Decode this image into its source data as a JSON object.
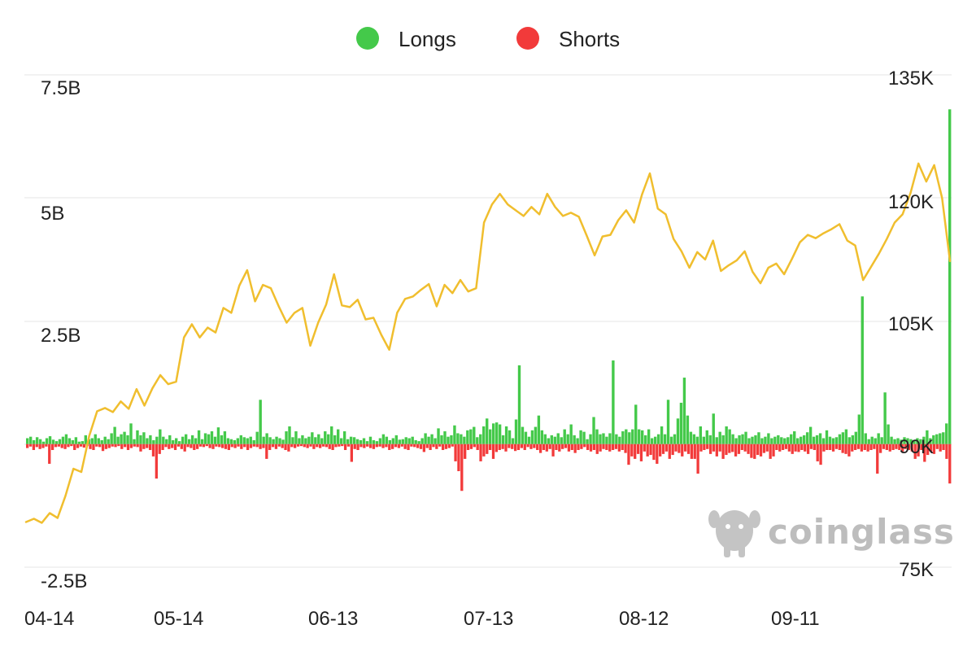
{
  "legend": [
    {
      "label": "Longs",
      "color": "#44c94a",
      "icon": "green-dot-icon"
    },
    {
      "label": "Shorts",
      "color": "#f23a3a",
      "icon": "red-dot-icon"
    }
  ],
  "watermark": {
    "text": "coinglass",
    "icon": "coinglass-logo-icon"
  },
  "colors": {
    "longs": "#44c94a",
    "shorts": "#f23a3a",
    "price": "#f0be2e",
    "grid": "#e6e6e6"
  },
  "chart_data": {
    "type": "bar",
    "x_range": [
      "2025-04-14",
      "2025-10-10"
    ],
    "x_tick_labels": [
      "04-14",
      "05-14",
      "06-13",
      "07-13",
      "08-12",
      "09-11"
    ],
    "y_left": {
      "ticks": [
        "7.5B",
        "5B",
        "2.5B",
        "-2.5B"
      ],
      "range": [
        -2.5,
        7.5
      ],
      "unit": "B"
    },
    "y_right": {
      "ticks": [
        "135K",
        "120K",
        "105K",
        "90K",
        "75K"
      ],
      "range": [
        75,
        135
      ],
      "unit": "K"
    },
    "grid": true,
    "legend_position": "top-center",
    "series": [
      {
        "name": "Longs",
        "type": "bar",
        "axis": "left",
        "values": [
          0.12,
          0.15,
          0.08,
          0.14,
          0.1,
          0.05,
          0.12,
          0.16,
          0.09,
          0.06,
          0.1,
          0.15,
          0.2,
          0.12,
          0.08,
          0.14,
          0.05,
          0.06,
          0.18,
          0.1,
          0.12,
          0.2,
          0.12,
          0.08,
          0.15,
          0.1,
          0.22,
          0.35,
          0.15,
          0.2,
          0.25,
          0.18,
          0.42,
          0.1,
          0.28,
          0.18,
          0.24,
          0.12,
          0.18,
          0.08,
          0.15,
          0.3,
          0.15,
          0.1,
          0.18,
          0.08,
          0.12,
          0.06,
          0.15,
          0.2,
          0.1,
          0.18,
          0.12,
          0.28,
          0.1,
          0.22,
          0.2,
          0.26,
          0.15,
          0.34,
          0.18,
          0.26,
          0.12,
          0.1,
          0.08,
          0.12,
          0.18,
          0.14,
          0.12,
          0.15,
          0.08,
          0.25,
          0.9,
          0.15,
          0.22,
          0.14,
          0.1,
          0.15,
          0.12,
          0.09,
          0.26,
          0.36,
          0.14,
          0.26,
          0.12,
          0.18,
          0.12,
          0.15,
          0.24,
          0.14,
          0.2,
          0.12,
          0.26,
          0.2,
          0.36,
          0.18,
          0.3,
          0.12,
          0.26,
          0.1,
          0.15,
          0.14,
          0.1,
          0.08,
          0.12,
          0.06,
          0.15,
          0.08,
          0.06,
          0.12,
          0.2,
          0.15,
          0.08,
          0.12,
          0.18,
          0.09,
          0.1,
          0.14,
          0.12,
          0.15,
          0.08,
          0.06,
          0.12,
          0.22,
          0.15,
          0.2,
          0.12,
          0.32,
          0.18,
          0.26,
          0.15,
          0.18,
          0.38,
          0.22,
          0.2,
          0.15,
          0.28,
          0.3,
          0.35,
          0.14,
          0.2,
          0.36,
          0.52,
          0.3,
          0.42,
          0.44,
          0.4,
          0.18,
          0.36,
          0.28,
          0.12,
          0.5,
          1.6,
          0.35,
          0.25,
          0.15,
          0.28,
          0.35,
          0.58,
          0.28,
          0.2,
          0.12,
          0.18,
          0.15,
          0.22,
          0.14,
          0.3,
          0.2,
          0.4,
          0.18,
          0.12,
          0.28,
          0.25,
          0.1,
          0.2,
          0.55,
          0.3,
          0.2,
          0.22,
          0.15,
          0.22,
          1.7,
          0.2,
          0.15,
          0.26,
          0.3,
          0.24,
          0.3,
          0.8,
          0.3,
          0.28,
          0.18,
          0.3,
          0.12,
          0.15,
          0.2,
          0.36,
          0.2,
          0.9,
          0.15,
          0.2,
          0.52,
          0.84,
          1.35,
          0.58,
          0.25,
          0.2,
          0.15,
          0.36,
          0.15,
          0.28,
          0.18,
          0.62,
          0.14,
          0.25,
          0.18,
          0.36,
          0.3,
          0.2,
          0.12,
          0.18,
          0.2,
          0.25,
          0.12,
          0.15,
          0.18,
          0.24,
          0.12,
          0.15,
          0.22,
          0.12,
          0.15,
          0.18,
          0.14,
          0.12,
          0.14,
          0.2,
          0.26,
          0.12,
          0.15,
          0.18,
          0.24,
          0.35,
          0.15,
          0.18,
          0.22,
          0.12,
          0.28,
          0.15,
          0.12,
          0.14,
          0.2,
          0.24,
          0.3,
          0.14,
          0.18,
          0.25,
          0.6,
          3.0,
          0.22,
          0.1,
          0.15,
          0.12,
          0.22,
          0.14,
          1.05,
          0.4,
          0.15,
          0.1,
          0.12,
          0.09,
          0.14,
          0.12,
          0.1,
          0.08,
          0.12,
          0.1,
          0.15,
          0.28,
          0.12,
          0.18,
          0.2,
          0.22,
          0.24,
          0.42,
          6.8
        ],
        "color": "#44c94a"
      },
      {
        "name": "Shorts",
        "type": "bar",
        "axis": "left",
        "values": [
          -0.08,
          -0.05,
          -0.12,
          -0.06,
          -0.1,
          -0.08,
          -0.05,
          -0.4,
          -0.12,
          -0.06,
          -0.05,
          -0.08,
          -0.1,
          -0.06,
          -0.04,
          -0.12,
          -0.08,
          -0.05,
          -0.07,
          -0.04,
          -0.1,
          -0.12,
          -0.05,
          -0.06,
          -0.14,
          -0.1,
          -0.08,
          -0.05,
          -0.06,
          -0.04,
          -0.1,
          -0.06,
          -0.12,
          -0.08,
          -0.05,
          -0.06,
          -0.15,
          -0.1,
          -0.08,
          -0.12,
          -0.25,
          -0.7,
          -0.2,
          -0.12,
          -0.06,
          -0.1,
          -0.08,
          -0.12,
          -0.05,
          -0.1,
          -0.15,
          -0.06,
          -0.08,
          -0.12,
          -0.1,
          -0.05,
          -0.06,
          -0.04,
          -0.08,
          -0.1,
          -0.05,
          -0.06,
          -0.08,
          -0.1,
          -0.12,
          -0.06,
          -0.08,
          -0.05,
          -0.1,
          -0.06,
          -0.12,
          -0.08,
          -0.05,
          -0.06,
          -0.1,
          -0.08,
          -0.3,
          -0.12,
          -0.06,
          -0.1,
          -0.05,
          -0.08,
          -0.12,
          -0.15,
          -0.06,
          -0.08,
          -0.05,
          -0.04,
          -0.06,
          -0.08,
          -0.05,
          -0.1,
          -0.06,
          -0.08,
          -0.05,
          -0.06,
          -0.1,
          -0.12,
          -0.06,
          -0.05,
          -0.04,
          -0.12,
          -0.05,
          -0.36,
          -0.1,
          -0.12,
          -0.06,
          -0.08,
          -0.05,
          -0.08,
          -0.1,
          -0.06,
          -0.05,
          -0.08,
          -0.06,
          -0.12,
          -0.1,
          -0.06,
          -0.08,
          -0.05,
          -0.1,
          -0.12,
          -0.05,
          -0.06,
          -0.08,
          -0.1,
          -0.16,
          -0.08,
          -0.12,
          -0.06,
          -0.1,
          -0.05,
          -0.12,
          -0.1,
          -0.08,
          -0.05,
          -0.35,
          -0.55,
          -0.95,
          -0.3,
          -0.12,
          -0.1,
          -0.06,
          -0.12,
          -0.35,
          -0.25,
          -0.2,
          -0.12,
          -0.3,
          -0.16,
          -0.12,
          -0.1,
          -0.15,
          -0.08,
          -0.1,
          -0.14,
          -0.12,
          -0.08,
          -0.12,
          -0.06,
          -0.1,
          -0.08,
          -0.12,
          -0.18,
          -0.12,
          -0.15,
          -0.1,
          -0.25,
          -0.12,
          -0.15,
          -0.1,
          -0.08,
          -0.15,
          -0.12,
          -0.18,
          -0.12,
          -0.1,
          -0.06,
          -0.12,
          -0.15,
          -0.12,
          -0.2,
          -0.15,
          -0.1,
          -0.12,
          -0.15,
          -0.12,
          -0.1,
          -0.15,
          -0.12,
          -0.18,
          -0.42,
          -0.25,
          -0.3,
          -0.2,
          -0.35,
          -0.15,
          -0.25,
          -0.22,
          -0.32,
          -0.4,
          -0.25,
          -0.2,
          -0.15,
          -0.3,
          -0.22,
          -0.15,
          -0.18,
          -0.25,
          -0.15,
          -0.2,
          -0.3,
          -0.3,
          -0.6,
          -0.15,
          -0.12,
          -0.1,
          -0.2,
          -0.15,
          -0.25,
          -0.15,
          -0.3,
          -0.22,
          -0.18,
          -0.16,
          -0.25,
          -0.2,
          -0.12,
          -0.15,
          -0.2,
          -0.28,
          -0.3,
          -0.22,
          -0.25,
          -0.18,
          -0.15,
          -0.3,
          -0.25,
          -0.12,
          -0.15,
          -0.12,
          -0.1,
          -0.15,
          -0.2,
          -0.15,
          -0.16,
          -0.12,
          -0.15,
          -0.2,
          -0.1,
          -0.12,
          -0.35,
          -0.42,
          -0.15,
          -0.12,
          -0.12,
          -0.15,
          -0.1,
          -0.12,
          -0.18,
          -0.2,
          -0.25,
          -0.15,
          -0.12,
          -0.1,
          -0.15,
          -0.12,
          -0.15,
          -0.12,
          -0.1,
          -0.6,
          -0.18,
          -0.1,
          -0.12,
          -0.15,
          -0.12,
          -0.1,
          -0.12,
          -0.15,
          -0.1,
          -0.12,
          -0.15,
          -0.3,
          -0.25,
          -0.12,
          -0.36,
          -0.22,
          -0.15,
          -0.2,
          -0.1,
          -0.15,
          -0.12,
          -0.3,
          -0.8
        ],
        "color": "#f23a3a"
      },
      {
        "name": "Price",
        "type": "line",
        "axis": "right",
        "points": [
          [
            0,
            80.5
          ],
          [
            3,
            80.9
          ],
          [
            6,
            80.4
          ],
          [
            9,
            81.6
          ],
          [
            12,
            81.0
          ],
          [
            15,
            83.7
          ],
          [
            18,
            87.0
          ],
          [
            21,
            86.6
          ],
          [
            24,
            91.0
          ],
          [
            27,
            94.0
          ],
          [
            30,
            94.4
          ],
          [
            33,
            93.9
          ],
          [
            36,
            95.2
          ],
          [
            39,
            94.3
          ],
          [
            42,
            96.7
          ],
          [
            45,
            94.7
          ],
          [
            48,
            96.8
          ],
          [
            51,
            98.4
          ],
          [
            54,
            97.3
          ],
          [
            57,
            97.6
          ],
          [
            60,
            103.0
          ],
          [
            63,
            104.6
          ],
          [
            66,
            103.0
          ],
          [
            69,
            104.2
          ],
          [
            72,
            103.6
          ],
          [
            75,
            106.6
          ],
          [
            78,
            106.0
          ],
          [
            81,
            109.3
          ],
          [
            84,
            111.2
          ],
          [
            87,
            107.4
          ],
          [
            90,
            109.4
          ],
          [
            93,
            109.0
          ],
          [
            96,
            106.8
          ],
          [
            99,
            104.8
          ],
          [
            102,
            106.0
          ],
          [
            105,
            106.6
          ],
          [
            108,
            102.0
          ],
          [
            111,
            104.8
          ],
          [
            114,
            107.0
          ],
          [
            117,
            110.7
          ],
          [
            120,
            106.9
          ],
          [
            123,
            106.7
          ],
          [
            126,
            107.6
          ],
          [
            129,
            105.2
          ],
          [
            132,
            105.4
          ],
          [
            135,
            103.3
          ],
          [
            138,
            101.5
          ],
          [
            141,
            106.0
          ],
          [
            144,
            107.7
          ],
          [
            147,
            108.0
          ],
          [
            150,
            108.8
          ],
          [
            153,
            109.5
          ],
          [
            156,
            106.8
          ],
          [
            159,
            109.4
          ],
          [
            162,
            108.4
          ],
          [
            165,
            110.0
          ],
          [
            168,
            108.6
          ],
          [
            171,
            109.0
          ],
          [
            174,
            117.0
          ],
          [
            177,
            119.2
          ],
          [
            180,
            120.5
          ],
          [
            183,
            119.2
          ],
          [
            186,
            118.5
          ],
          [
            189,
            117.8
          ],
          [
            192,
            118.9
          ],
          [
            195,
            118.0
          ],
          [
            198,
            120.5
          ],
          [
            201,
            118.9
          ],
          [
            204,
            117.8
          ],
          [
            207,
            118.2
          ],
          [
            210,
            117.7
          ],
          [
            213,
            115.4
          ],
          [
            216,
            113.0
          ],
          [
            219,
            115.3
          ],
          [
            222,
            115.5
          ],
          [
            225,
            117.3
          ],
          [
            228,
            118.5
          ],
          [
            231,
            117.0
          ],
          [
            234,
            120.4
          ],
          [
            237,
            123.0
          ],
          [
            240,
            118.7
          ],
          [
            243,
            118.0
          ],
          [
            246,
            115.0
          ],
          [
            249,
            113.5
          ],
          [
            252,
            111.5
          ],
          [
            255,
            113.4
          ],
          [
            258,
            112.5
          ],
          [
            261,
            114.8
          ],
          [
            264,
            111.1
          ],
          [
            267,
            111.8
          ],
          [
            270,
            112.4
          ],
          [
            273,
            113.5
          ],
          [
            276,
            111.0
          ],
          [
            279,
            109.6
          ],
          [
            282,
            111.5
          ],
          [
            285,
            112.0
          ],
          [
            288,
            110.7
          ],
          [
            291,
            112.6
          ],
          [
            294,
            114.6
          ],
          [
            297,
            115.5
          ],
          [
            300,
            115.1
          ],
          [
            303,
            115.7
          ],
          [
            306,
            116.2
          ],
          [
            309,
            116.8
          ],
          [
            312,
            114.8
          ],
          [
            315,
            114.2
          ],
          [
            318,
            110.0
          ],
          [
            321,
            111.6
          ],
          [
            324,
            113.2
          ],
          [
            327,
            115.0
          ],
          [
            330,
            117.0
          ],
          [
            333,
            118.0
          ],
          [
            336,
            120.6
          ],
          [
            339,
            124.2
          ],
          [
            342,
            122.0
          ],
          [
            345,
            124.0
          ],
          [
            348,
            120.0
          ],
          [
            351,
            112.3
          ]
        ],
        "color": "#f0be2e"
      }
    ]
  }
}
